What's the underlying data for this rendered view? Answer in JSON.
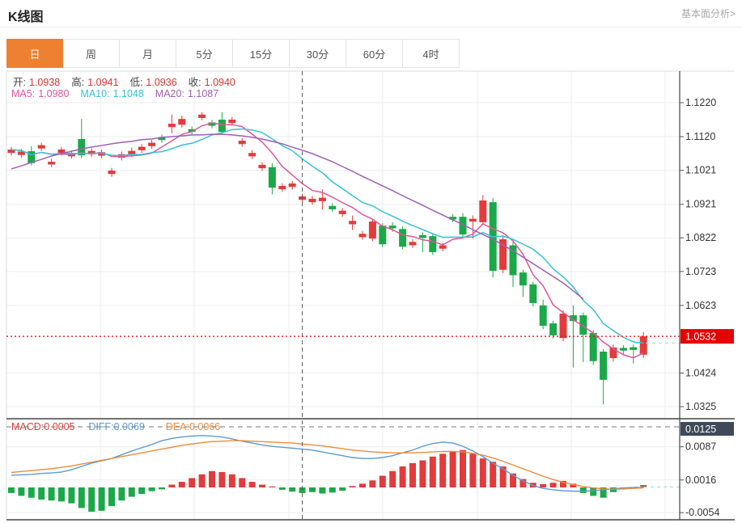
{
  "header": {
    "title": "K线图",
    "link_label": "基本面分析>"
  },
  "tabs": {
    "selected": "日",
    "items": [
      "日",
      "周",
      "月",
      "5分",
      "15分",
      "30分",
      "60分",
      "4时"
    ]
  },
  "legends": {
    "ohlc": [
      {
        "label": "开:",
        "value": "1.0938"
      },
      {
        "label": "高:",
        "value": "1.0941"
      },
      {
        "label": "低:",
        "value": "1.0936"
      },
      {
        "label": "收:",
        "value": "1.0940"
      }
    ],
    "ma": [
      {
        "label": "MA5:",
        "value": "1.0980",
        "color": "#e0559a"
      },
      {
        "label": "MA10:",
        "value": "1.1048",
        "color": "#35c2d6"
      },
      {
        "label": "MA20:",
        "value": "1.1087",
        "color": "#a05fb5"
      }
    ],
    "macd": [
      {
        "label": "MACD:",
        "value": "0.0005",
        "color": "#e23b3b"
      },
      {
        "label": "DIFF:",
        "value": "0.0069",
        "color": "#5b9bd5"
      },
      {
        "label": "DEA:",
        "value": "0.0066",
        "color": "#ed8b3f"
      }
    ]
  },
  "chart_data": {
    "type": "candlestick",
    "title": "K线图 (daily K-line with MA5/MA10/MA20 and MACD)",
    "legend_position": "top-left",
    "grid": true,
    "price_axis": {
      "ticks": [
        1.122,
        1.112,
        1.1021,
        1.0921,
        1.0822,
        1.0723,
        1.0623,
        1.0424,
        1.0325
      ],
      "current_price": 1.0532,
      "range": [
        1.0289,
        1.1313
      ]
    },
    "candles": [
      [
        1.1072,
        1.109,
        1.1064,
        1.1082
      ],
      [
        1.1066,
        1.1084,
        1.1058,
        1.1076
      ],
      [
        1.1077,
        1.1092,
        1.1035,
        1.1042
      ],
      [
        1.1085,
        1.1102,
        1.1078,
        1.1095
      ],
      [
        1.1038,
        1.1054,
        1.103,
        1.1046
      ],
      [
        1.1072,
        1.109,
        1.1064,
        1.1082
      ],
      [
        1.1062,
        1.108,
        1.1055,
        1.1072
      ],
      [
        1.1113,
        1.1172,
        1.1056,
        1.1065
      ],
      [
        1.1068,
        1.1086,
        1.106,
        1.1078
      ],
      [
        1.1064,
        1.1082,
        1.1056,
        1.1074
      ],
      [
        1.101,
        1.1028,
        1.1002,
        1.102
      ],
      [
        1.1058,
        1.1076,
        1.105,
        1.1068
      ],
      [
        1.1068,
        1.1088,
        1.106,
        1.1078
      ],
      [
        1.108,
        1.1098,
        1.1072,
        1.109
      ],
      [
        1.1092,
        1.111,
        1.1084,
        1.1102
      ],
      [
        1.1118,
        1.1126,
        1.1102,
        1.111
      ],
      [
        1.1148,
        1.1185,
        1.113,
        1.1158
      ],
      [
        1.1155,
        1.1182,
        1.1146,
        1.1172
      ],
      [
        1.1142,
        1.115,
        1.1126,
        1.1134
      ],
      [
        1.1175,
        1.1192,
        1.1168,
        1.1185
      ],
      [
        1.1162,
        1.117,
        1.1144,
        1.1152
      ],
      [
        1.117,
        1.1192,
        1.1126,
        1.1134
      ],
      [
        1.116,
        1.1178,
        1.1152,
        1.117
      ],
      [
        1.1098,
        1.1116,
        1.109,
        1.1108
      ],
      [
        1.1062,
        1.108,
        1.1054,
        1.1072
      ],
      [
        1.1027,
        1.1045,
        1.1019,
        1.1037
      ],
      [
        1.103,
        1.1042,
        1.095,
        1.097
      ],
      [
        1.0965,
        1.0983,
        1.0957,
        1.0975
      ],
      [
        1.0972,
        1.099,
        1.0964,
        1.0982
      ],
      [
        1.0934,
        1.0952,
        1.0926,
        1.0944
      ],
      [
        1.0927,
        1.0945,
        1.0919,
        1.0937
      ],
      [
        1.093,
        1.0965,
        1.0905,
        1.094
      ],
      [
        1.0916,
        1.0924,
        1.0898,
        1.0906
      ],
      [
        1.0892,
        1.091,
        1.0884,
        1.0902
      ],
      [
        1.0862,
        1.0888,
        1.0845,
        1.0872
      ],
      [
        1.0824,
        1.0842,
        1.0816,
        1.0834
      ],
      [
        1.082,
        1.0878,
        1.0812,
        1.087
      ],
      [
        1.0858,
        1.0865,
        1.0795,
        1.0803
      ],
      [
        1.0858,
        1.0868,
        1.084,
        1.085
      ],
      [
        1.0848,
        1.0856,
        1.0788,
        1.0796
      ],
      [
        1.08,
        1.0818,
        1.0792,
        1.081
      ],
      [
        1.083,
        1.0838,
        1.078,
        1.0822
      ],
      [
        1.0827,
        1.0835,
        1.0772,
        1.078
      ],
      [
        1.079,
        1.0808,
        1.0782,
        1.08
      ],
      [
        1.0884,
        1.0892,
        1.0868,
        1.0876
      ],
      [
        1.0884,
        1.0895,
        1.0824,
        1.0832
      ],
      [
        1.087,
        1.0888,
        1.082,
        1.0878
      ],
      [
        1.0868,
        1.0948,
        1.086,
        1.0932
      ],
      [
        1.0927,
        1.094,
        1.0705,
        1.0725
      ],
      [
        1.0728,
        1.0828,
        1.0718,
        1.0818
      ],
      [
        1.08,
        1.081,
        1.0677,
        1.0712
      ],
      [
        1.072,
        1.0728,
        1.0648,
        1.0682
      ],
      [
        1.0685,
        1.0693,
        1.062,
        1.063
      ],
      [
        1.0623,
        1.064,
        1.0553,
        1.0563
      ],
      [
        1.057,
        1.0578,
        1.0525,
        1.0535
      ],
      [
        1.0527,
        1.0608,
        1.0518,
        1.0599
      ],
      [
        1.0594,
        1.0623,
        1.044,
        1.0577
      ],
      [
        1.0594,
        1.0602,
        1.0456,
        1.0537
      ],
      [
        1.0542,
        1.055,
        1.0448,
        1.0459
      ],
      [
        1.0487,
        1.0495,
        1.0332,
        1.0404
      ],
      [
        1.0468,
        1.0508,
        1.0458,
        1.0499
      ],
      [
        1.0498,
        1.0506,
        1.048,
        1.049
      ],
      [
        1.05,
        1.0508,
        1.0452,
        1.0492
      ],
      [
        1.0478,
        1.0545,
        1.0468,
        1.0532
      ]
    ],
    "ma20": [
      1.1025,
      1.1034,
      1.1044,
      1.1053,
      1.1063,
      1.107,
      1.1077,
      1.1084,
      1.1089,
      1.1094,
      1.1099,
      1.1103,
      1.1106,
      1.1111,
      1.1113,
      1.1118,
      1.112,
      1.1122,
      1.1125,
      1.1125,
      1.1127,
      1.1127,
      1.1125,
      1.1122,
      1.1118,
      1.1113,
      1.1106,
      1.1099,
      1.1089,
      1.108,
      1.107,
      1.1058,
      1.1046,
      1.1032,
      1.1018,
      1.1003,
      1.0989,
      1.0975,
      1.0961,
      1.0946,
      1.0932,
      1.0918,
      1.0903,
      1.0889,
      1.0875,
      1.0861,
      1.0846,
      1.0832,
      1.0818,
      1.0801,
      1.0784,
      1.0765,
      1.0746,
      1.0727,
      1.0708,
      1.0689,
      1.0666,
      1.0642
    ],
    "macd": {
      "axis_ticks": [
        0.0087,
        0.0016,
        -0.0054
      ],
      "max_badge": "0.0125",
      "hist": [
        -0.0012,
        -0.0018,
        -0.0022,
        -0.0026,
        -0.0028,
        -0.003,
        -0.0034,
        -0.0044,
        -0.0052,
        -0.005,
        -0.004,
        -0.0028,
        -0.002,
        -0.0014,
        -0.0008,
        -0.0004,
        0.0006,
        0.0012,
        0.002,
        0.0028,
        0.0035,
        0.0033,
        0.0028,
        0.002,
        0.0012,
        0.0006,
        0.0002,
        -0.0005,
        -0.0009,
        -0.0012,
        -0.001,
        -0.0013,
        -0.0011,
        -0.0007,
        0.0003,
        0.0008,
        0.0015,
        0.0025,
        0.0035,
        0.0045,
        0.0052,
        0.0058,
        0.0066,
        0.0072,
        0.0078,
        0.008,
        0.0072,
        0.0062,
        0.0055,
        0.0045,
        0.003,
        0.0018,
        0.001,
        0.0007,
        0.001,
        0.0014,
        0.0008,
        -0.0012,
        -0.0018,
        -0.0022,
        -0.001,
        -0.0004,
        -0.0002,
        0.0005
      ],
      "diff": [
        0.0026,
        0.0027,
        0.0028,
        0.003,
        0.0031,
        0.0033,
        0.0038,
        0.0045,
        0.0052,
        0.0057,
        0.0062,
        0.007,
        0.0078,
        0.0085,
        0.0092,
        0.01,
        0.0105,
        0.0108,
        0.011,
        0.0111,
        0.011,
        0.0108,
        0.0104,
        0.0099,
        0.0095,
        0.0091,
        0.0088,
        0.0086,
        0.0084,
        0.0082,
        0.008,
        0.0076,
        0.0072,
        0.0068,
        0.0064,
        0.0062,
        0.0062,
        0.0064,
        0.0068,
        0.0074,
        0.008,
        0.0088,
        0.0094,
        0.0097,
        0.0095,
        0.0088,
        0.0078,
        0.0066,
        0.0052,
        0.004,
        0.0026,
        0.0014,
        0.0004,
        -0.0002,
        -0.0005,
        -0.0007,
        -0.0008,
        -0.0008,
        -0.0007,
        -0.0005,
        -0.0003,
        -0.0001,
        0.0,
        0.0001
      ],
      "dea": [
        0.0032,
        0.0034,
        0.0036,
        0.0038,
        0.004,
        0.0043,
        0.0046,
        0.005,
        0.0054,
        0.0058,
        0.0062,
        0.0066,
        0.007,
        0.0074,
        0.0078,
        0.0082,
        0.0086,
        0.009,
        0.0093,
        0.0096,
        0.0098,
        0.0099,
        0.01,
        0.01,
        0.0099,
        0.0098,
        0.0097,
        0.0096,
        0.0095,
        0.0093,
        0.0091,
        0.0089,
        0.0086,
        0.0083,
        0.008,
        0.0078,
        0.0076,
        0.0075,
        0.0074,
        0.0074,
        0.0074,
        0.0075,
        0.0076,
        0.0077,
        0.0077,
        0.0076,
        0.0073,
        0.0069,
        0.0063,
        0.0056,
        0.0048,
        0.004,
        0.0032,
        0.0024,
        0.0017,
        0.0011,
        0.0006,
        0.0002,
        -0.0001,
        -0.0003,
        -0.0004,
        -0.0003,
        -0.0002,
        -0.0001
      ]
    },
    "crosshair": {
      "candle_index": 29,
      "macd_badge": "0.0125"
    }
  },
  "colors": {
    "up": "#e23b3b",
    "down": "#1ba849",
    "ma5": "#e0559a",
    "ma10": "#35c2d6",
    "ma20": "#a05fb5",
    "diff": "#5b9bd5",
    "dea": "#ed8b3f",
    "price_line": "#e60000",
    "badge_dark": "#3e4a5a",
    "tab_active": "#ee8131",
    "grid": "#ededed",
    "axis_text": "#333333",
    "value_red": "#e03131",
    "extension_cyan": "#8fd8e4"
  }
}
